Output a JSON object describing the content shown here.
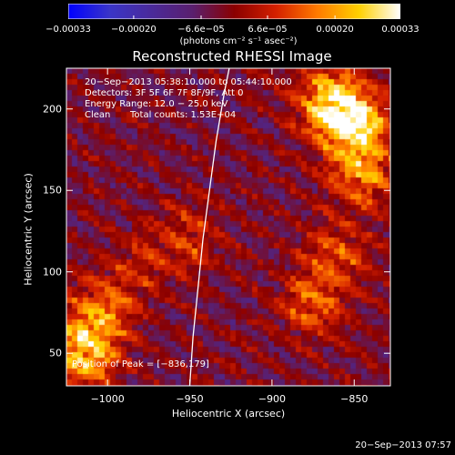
{
  "chart_data": {
    "type": "heatmap",
    "title": "Reconstructed RHESSI Image",
    "xlabel": "Heliocentric X (arcsec)",
    "ylabel": "Heliocentric Y (arcsec)",
    "xlim": [
      -1025,
      -828
    ],
    "ylim": [
      30,
      225
    ],
    "xticks": [
      -1000,
      -950,
      -900,
      -850
    ],
    "yticks": [
      50,
      100,
      150,
      200
    ],
    "xtick_labels": [
      "−1000",
      "−950",
      "−900",
      "−850"
    ],
    "ytick_labels": [
      "50",
      "100",
      "150",
      "200"
    ],
    "colorbar": {
      "ticks": [
        -0.00033,
        -0.0002,
        -6.6e-05,
        6.6e-05,
        0.0002,
        0.00033
      ],
      "tick_labels": [
        "−0.00033",
        "−0.00020",
        "−6.6e−05",
        "6.6e−05",
        "0.00020",
        "0.00033"
      ],
      "unit_label": "(photons cm⁻² s⁻¹ asec⁻²)",
      "range": [
        -0.00033,
        0.00033
      ]
    },
    "annotations": [
      "20−Sep−2013 05:38:10.000 to 05:44:10.000",
      "Detectors: 3F 5F 6F 7F 8F/9F, Att 0",
      "Energy Range: 12.0 − 25.0 keV",
      "Clean",
      "Total counts: 1.53E+04"
    ],
    "peak_label": "Position of Peak = [−836,179]",
    "peak": [
      -836,
      179
    ],
    "limb_curve": [
      [
        -950,
        30
      ],
      [
        -948,
        60
      ],
      [
        -945,
        90
      ],
      [
        -942,
        120
      ],
      [
        -938,
        150
      ],
      [
        -934,
        180
      ],
      [
        -929,
        210
      ],
      [
        -926,
        225
      ]
    ],
    "bright_regions": [
      {
        "x": -850,
        "y": 190,
        "intensity": 0.00033
      },
      {
        "x": -865,
        "y": 205,
        "intensity": 0.00028
      },
      {
        "x": -845,
        "y": 160,
        "intensity": 0.00022
      },
      {
        "x": -1015,
        "y": 50,
        "intensity": 0.0003
      },
      {
        "x": -1005,
        "y": 75,
        "intensity": 0.0002
      },
      {
        "x": -875,
        "y": 80,
        "intensity": 0.00018
      },
      {
        "x": -860,
        "y": 110,
        "intensity": 0.00015
      },
      {
        "x": -950,
        "y": 120,
        "intensity": 0.00012
      },
      {
        "x": -980,
        "y": 105,
        "intensity": 0.0001
      }
    ],
    "colormap": [
      "#0000ff",
      "#3a35c8",
      "#4a2a9a",
      "#5a1f6e",
      "#8a0000",
      "#d42000",
      "#ff7a00",
      "#ffd000",
      "#ffffff"
    ]
  },
  "timestamp": "20−Sep−2013 07:57"
}
